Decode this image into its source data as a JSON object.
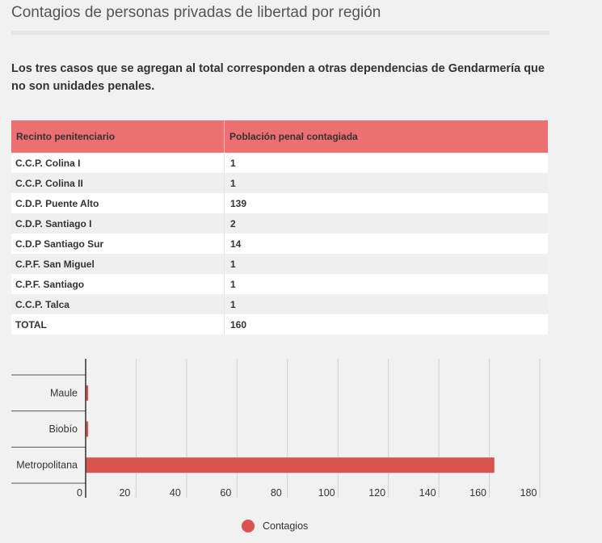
{
  "title": "Contagios de personas privadas de libertad por región",
  "description": "Los tres casos que se agregan al total corresponden a otras dependencias de Gendarmería que no son unidades penales.",
  "table": {
    "headers": [
      "Recinto penitenciario",
      "Población penal contagiada"
    ],
    "rows": [
      [
        "C.C.P. Colina I",
        "1"
      ],
      [
        "C.C.P. Colina II",
        "1"
      ],
      [
        "C.D.P. Puente Alto",
        "139"
      ],
      [
        "C.D.P. Santiago I",
        "2"
      ],
      [
        "C.D.P Santiago Sur",
        "14"
      ],
      [
        "C.P.F. San Miguel",
        "1"
      ],
      [
        "C.P.F. Santiago",
        "1"
      ],
      [
        "C.C.P. Talca",
        "1"
      ],
      [
        "TOTAL",
        "160"
      ]
    ]
  },
  "chart_data": {
    "type": "bar",
    "orientation": "horizontal",
    "categories": [
      "Maule",
      "Biobío",
      "Metropolitana"
    ],
    "series": [
      {
        "name": "Contagios",
        "values": [
          1,
          1,
          162
        ],
        "color": "#d9534f"
      }
    ],
    "xlim": [
      0,
      180
    ],
    "xticks": [
      0,
      20,
      40,
      60,
      80,
      100,
      120,
      140,
      160,
      180
    ],
    "grid": true,
    "legend_position": "bottom"
  },
  "colors": {
    "header_bg": "#ec6f71",
    "bar": "#d9534f",
    "background": "#f1f1f1"
  }
}
